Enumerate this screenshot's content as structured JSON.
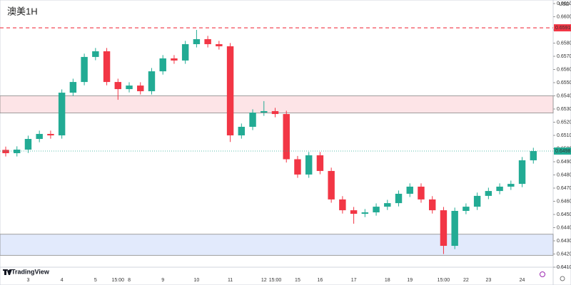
{
  "chart_data": {
    "type": "candlestick",
    "title": "澳美1H",
    "brand": "TradingView",
    "currency": "USD",
    "up_color": "#22ab94",
    "down_color": "#f23645",
    "grid": false,
    "categories": [
      null,
      null,
      "3",
      null,
      null,
      "4",
      null,
      null,
      "5",
      null,
      "15:00",
      "8",
      null,
      null,
      "9",
      null,
      null,
      "10",
      null,
      null,
      "11",
      null,
      null,
      "12",
      "15:00",
      null,
      "15",
      null,
      "16",
      null,
      null,
      "17",
      null,
      null,
      "18",
      null,
      "19",
      null,
      null,
      "15:00",
      null,
      "22",
      null,
      "23",
      null,
      null,
      "24",
      null
    ],
    "open": [
      0.6499,
      0.64965,
      0.64992,
      0.65073,
      0.65111,
      0.651,
      0.65424,
      0.65505,
      0.65695,
      0.65738,
      0.65505,
      0.65451,
      0.65478,
      0.65435,
      0.65586,
      0.65684,
      0.65668,
      0.65792,
      0.6583,
      0.65792,
      0.65776,
      0.651,
      0.65165,
      0.65273,
      0.65284,
      0.65262,
      0.64919,
      0.64803,
      0.64949,
      0.6483,
      0.64614,
      0.64532,
      0.64505,
      0.64516,
      0.64559,
      0.64586,
      0.64657,
      0.64711,
      0.64614,
      0.64532,
      0.64262,
      0.64527,
      0.64559,
      0.64641,
      0.64678,
      0.64711,
      0.64732,
      0.64911
    ],
    "high": [
      0.65015,
      0.65017,
      0.65098,
      0.65136,
      0.65136,
      0.65449,
      0.6553,
      0.6572,
      0.65763,
      0.65763,
      0.6553,
      0.65503,
      0.65503,
      0.65611,
      0.65709,
      0.65709,
      0.65817,
      0.659,
      0.65855,
      0.65817,
      0.65801,
      0.6519,
      0.65298,
      0.6536,
      0.65309,
      0.65287,
      0.64944,
      0.64974,
      0.64974,
      0.64855,
      0.64639,
      0.64557,
      0.64541,
      0.64584,
      0.64611,
      0.64682,
      0.64736,
      0.64736,
      0.64639,
      0.64557,
      0.64552,
      0.64584,
      0.64666,
      0.64703,
      0.64736,
      0.64757,
      0.64936,
      0.65006
    ],
    "low": [
      0.6494,
      0.6494,
      0.64967,
      0.65048,
      0.65075,
      0.65075,
      0.65399,
      0.6548,
      0.6567,
      0.6548,
      0.6537,
      0.65426,
      0.6541,
      0.6541,
      0.65561,
      0.65643,
      0.65643,
      0.65767,
      0.65767,
      0.65751,
      0.6505,
      0.65075,
      0.6514,
      0.65248,
      0.65237,
      0.64894,
      0.64778,
      0.64778,
      0.64805,
      0.64589,
      0.64507,
      0.6443,
      0.6448,
      0.64491,
      0.64534,
      0.64561,
      0.64632,
      0.64589,
      0.64507,
      0.642,
      0.64237,
      0.64502,
      0.64534,
      0.64616,
      0.64653,
      0.64686,
      0.64707,
      0.64886
    ],
    "close": [
      0.64965,
      0.64992,
      0.65073,
      0.65111,
      0.651,
      0.65424,
      0.65505,
      0.65695,
      0.65738,
      0.65505,
      0.65451,
      0.65478,
      0.65435,
      0.65586,
      0.65684,
      0.65668,
      0.65792,
      0.6583,
      0.65792,
      0.65776,
      0.651,
      0.65165,
      0.65273,
      0.65284,
      0.65262,
      0.64919,
      0.64803,
      0.64949,
      0.6483,
      0.64614,
      0.64532,
      0.64505,
      0.64516,
      0.64559,
      0.64586,
      0.64657,
      0.64711,
      0.64614,
      0.64532,
      0.64262,
      0.64527,
      0.64559,
      0.64641,
      0.64678,
      0.64711,
      0.64732,
      0.64911,
      0.64981
    ],
    "last_price_label": "0.64981",
    "hline": {
      "value": 0.65916,
      "label": "0.65916",
      "color": "#f23645"
    },
    "zones": [
      {
        "from": 0.6527,
        "to": 0.654,
        "color": "#fde4e7"
      },
      {
        "from": 0.6419,
        "to": 0.6435,
        "color": "#e2eafc"
      }
    ],
    "ylim": [
      0.641,
      0.661
    ],
    "yticks": [
      {
        "value": 0.641,
        "label": "0.64100"
      },
      {
        "value": 0.642,
        "label": "0.64200"
      },
      {
        "value": 0.643,
        "label": "0.64300"
      },
      {
        "value": 0.644,
        "label": "0.64400"
      },
      {
        "value": 0.645,
        "label": "0.64500"
      },
      {
        "value": 0.646,
        "label": "0.64600"
      },
      {
        "value": 0.647,
        "label": "0.64700"
      },
      {
        "value": 0.648,
        "label": "0.64800"
      },
      {
        "value": 0.649,
        "label": "0.64900"
      },
      {
        "value": 0.65,
        "label": "0.65000"
      },
      {
        "value": 0.651,
        "label": "0.65100"
      },
      {
        "value": 0.652,
        "label": "0.65200"
      },
      {
        "value": 0.653,
        "label": "0.65300"
      },
      {
        "value": 0.654,
        "label": "0.65400"
      },
      {
        "value": 0.655,
        "label": "0.65500"
      },
      {
        "value": 0.656,
        "label": "0.65600"
      },
      {
        "value": 0.657,
        "label": "0.65700"
      },
      {
        "value": 0.658,
        "label": "0.65800"
      },
      {
        "value": 0.659,
        "label": "0.65900"
      },
      {
        "value": 0.66,
        "label": "0.66000"
      },
      {
        "value": 0.661,
        "label": "0.66100"
      }
    ]
  }
}
